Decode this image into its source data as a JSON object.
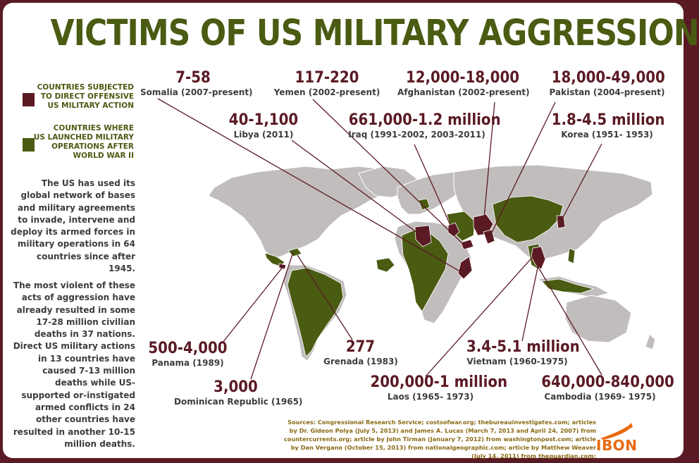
{
  "title": "VICTIMS OF US MILITARY AGGRESSION",
  "legend": [
    {
      "text": "COUNTRIES SUBJECTED\nTO DIRECT OFFENSIVE\nUS MILITARY ACTION",
      "color": "#5a1a24"
    },
    {
      "text": "COUNTRIES WHERE\nUS LAUNCHED MILITARY\nOPERATIONS AFTER\nWORLD WAR II",
      "color": "#4a5b12"
    }
  ],
  "paragraphs": [
    "The US has used its global network of bases and military agreements to invade, intervene and deploy its armed forces in military operations in 64 countries since after 1945.",
    "The most violent of these acts of aggression have already resulted in some 17-28 million civilian deaths in 37 nations. Direct US military actions in 13 countries have caused 7-13 million deaths while US-supported or-instigated armed conflicts in 24 other countries have resulted in another 10-15 million deaths."
  ],
  "labels": {
    "somalia": {
      "num": "7-58",
      "country": "Somalia (2007-present)"
    },
    "yemen": {
      "num": "117-220",
      "country": "Yemen (2002-present)"
    },
    "afghanistan": {
      "num": "12,000-18,000",
      "country": "Afghanistan (2002-present)"
    },
    "pakistan": {
      "num": "18,000-49,000",
      "country": "Pakistan (2004-present)"
    },
    "libya": {
      "num": "40-1,100",
      "country": "Libya (2011)"
    },
    "iraq": {
      "num": "661,000-1.2 million",
      "country": "Iraq (1991-2002, 2003-2011)"
    },
    "korea": {
      "num": "1.8-4.5 million",
      "country": "Korea (1951- 1953)"
    },
    "panama": {
      "num": "500-4,000",
      "country": "Panama (1989)"
    },
    "grenada": {
      "num": "277",
      "country": "Grenada (1983)"
    },
    "dominican": {
      "num": "3,000",
      "country": "Dominican Republic (1965)"
    },
    "vietnam": {
      "num": "3.4-5.1 million",
      "country": "Vietnam (1960-1975)"
    },
    "laos": {
      "num": "200,000-1 million",
      "country": "Laos (1965- 1973)"
    },
    "cambodia": {
      "num": "640,000-840,000",
      "country": "Cambodia (1969- 1975)"
    }
  },
  "sources": "Sources: Congressional Research Service; costsofwar.org; thebureauinvestigates.com; articles by Dr. Gideon Polya (July 5, 2013) and James A. Lucas (March 7, 2013 and April 24, 2007) from countercurrents.org; article by John Tirman (January 7, 2012) from washingtonpost.com; article by Dan Vergano (October 15, 2013) from nationalgeographic.com; article by Matthew Weaver (July 14, 2011) from theguardian.com;",
  "logo": "IBON",
  "colors": {
    "direct": "#5a1a24",
    "launched": "#4a5b12",
    "land": "#c2bdbd",
    "accent": "#e86a10"
  }
}
